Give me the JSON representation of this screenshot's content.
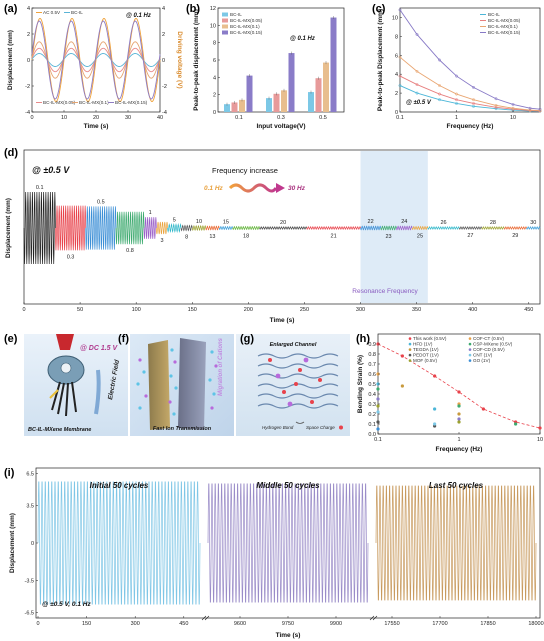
{
  "panels": {
    "a": {
      "label": "(a)",
      "freq_note": "@ 0.1 Hz",
      "ylabel": "Displacement (mm)",
      "ylabel2": "Driving voltage (V)",
      "xlabel": "Time (s)",
      "legend": [
        "AC 0.5V",
        "BC-IL",
        "BC-IL-MX(0.05)",
        "BC-IL-MX(0.1)",
        "BC-IL-MX(0.15)"
      ]
    },
    "b": {
      "label": "(b)",
      "freq_note": "@ 0.1 Hz",
      "xlabel": "Input voltage(V)",
      "ylabel": "Peak-to-peak displacement (mm)",
      "legend": [
        "BC-IL",
        "BC-IL-MX(0.05)",
        "BC-IL-MX(0.1)",
        "BC-IL-MX(0.15)"
      ]
    },
    "c": {
      "label": "(c)",
      "voltage_note": "@ ±0.5 V",
      "xlabel": "Frequency (Hz)",
      "ylabel": "Peak-to-peak Displacement (mm)",
      "legend": [
        "BC-IL",
        "BC-IL-MX(0.05)",
        "BC-IL-MX(0.1)",
        "BC-IL-MX(0.15)"
      ]
    },
    "d": {
      "label": "(d)",
      "voltage_note": "@ ±0.5 V",
      "title": "Frequency increase",
      "freq_start": "0.1 Hz",
      "freq_end": "30 Hz",
      "ylabel": "Displacement (mm)",
      "xlabel": "Time (s)",
      "resonance_label": "Resonance Frequency",
      "freq_labels": [
        "0.1",
        "0.3",
        "0.5",
        "0.8",
        "1",
        "3",
        "5",
        "8",
        "10",
        "13",
        "15",
        "18",
        "20",
        "21",
        "22",
        "23",
        "24",
        "25",
        "26",
        "27",
        "28",
        "29",
        "30"
      ]
    },
    "e": {
      "label": "(e)",
      "note": "@ DC 1.5 V",
      "caption": "BC-IL-MXene Membrane",
      "field": "Electric Field"
    },
    "f": {
      "label": "(f)",
      "caption": "Fast Ion Transmission",
      "migration": "Migration of Cations"
    },
    "g": {
      "label": "(g)",
      "title": "Enlarged Channel",
      "legend1": "Hydrogen Bond",
      "legend2": "Space Charge"
    },
    "h": {
      "label": "(h)",
      "xlabel": "Frequency (Hz)",
      "ylabel": "Bending Strain (%)",
      "legend": [
        "This work (0.5V)",
        "COF-CT (0.5V)",
        "HFD (1V)",
        "CSP-MXene (0.5V)",
        "TEGDA (1V)",
        "COF-CD (0.5V)",
        "PEDOT (1V)",
        "CNT (1V)",
        "MOF (0.5V)",
        "GO (1V)"
      ]
    },
    "i": {
      "label": "(i)",
      "segment_labels": [
        "Initial 50 cycles",
        "Middle 50 cycles",
        "Last 50 cycles"
      ],
      "note": "@ ±0.5 V, 0.1 Hz",
      "ylabel": "Displacement (mm)",
      "xlabel": "Time (s)"
    }
  },
  "chart_data": [
    {
      "type": "line",
      "panel": "a",
      "xlabel": "Time (s)",
      "ylabel": "Displacement (mm)",
      "xlim": [
        0,
        40
      ],
      "ylim": [
        -4,
        4
      ],
      "x_ticks": [
        0,
        10,
        20,
        30,
        40
      ],
      "y_ticks": [
        -4,
        -2,
        0,
        2,
        4
      ],
      "y2_ticks": [
        -4,
        -2,
        0,
        2,
        4
      ],
      "period_s": 10,
      "series": [
        {
          "name": "AC 0.5V",
          "amplitude": 3.2,
          "color": "#F0A23B"
        },
        {
          "name": "BC-IL",
          "amplitude": 0.5,
          "color": "#5AB4D6"
        },
        {
          "name": "BC-IL-MX(0.05)",
          "amplitude": 0.9,
          "color": "#E88A8A"
        },
        {
          "name": "BC-IL-MX(0.1)",
          "amplitude": 1.4,
          "color": "#E6A572"
        },
        {
          "name": "BC-IL-MX(0.15)",
          "amplitude": 3.0,
          "color": "#8E7CC3"
        }
      ]
    },
    {
      "type": "bar",
      "panel": "b",
      "categories": [
        "0.1",
        "0.3",
        "0.5"
      ],
      "xlabel": "Input voltage(V)",
      "ylabel": "Peak-to-peak displacement (mm)",
      "ylim": [
        0,
        12
      ],
      "y_ticks": [
        0,
        2,
        4,
        6,
        8,
        10,
        12
      ],
      "series": [
        {
          "name": "BC-IL",
          "values": [
            0.9,
            1.6,
            2.3
          ],
          "color": "#7CC8E6"
        },
        {
          "name": "BC-IL-MX(0.05)",
          "values": [
            1.1,
            2.1,
            3.9
          ],
          "color": "#E79A9A"
        },
        {
          "name": "BC-IL-MX(0.1)",
          "values": [
            1.4,
            2.5,
            5.7
          ],
          "color": "#E8BE8E"
        },
        {
          "name": "BC-IL-MX(0.15)",
          "values": [
            4.2,
            6.8,
            10.9
          ],
          "color": "#8A7CC8"
        }
      ]
    },
    {
      "type": "line",
      "panel": "c",
      "xlabel": "Frequency (Hz)",
      "ylabel": "Peak-to-peak Displacement (mm)",
      "xscale": "log",
      "xlim": [
        0.1,
        30
      ],
      "ylim": [
        0,
        11
      ],
      "x_ticks": [
        0.1,
        1,
        10
      ],
      "y_ticks": [
        0,
        2,
        4,
        6,
        8,
        10
      ],
      "x": [
        0.1,
        0.2,
        0.5,
        1,
        2,
        5,
        10,
        20,
        30
      ],
      "series": [
        {
          "name": "BC-IL",
          "values": [
            2.8,
            2.0,
            1.3,
            0.9,
            0.6,
            0.35,
            0.2,
            0.1,
            0.08
          ],
          "color": "#4BB6D8"
        },
        {
          "name": "BC-IL-MX(0.05)",
          "values": [
            3.8,
            2.9,
            1.9,
            1.3,
            0.9,
            0.5,
            0.3,
            0.15,
            0.1
          ],
          "color": "#E77F7F"
        },
        {
          "name": "BC-IL-MX(0.1)",
          "values": [
            5.8,
            4.3,
            2.8,
            1.9,
            1.3,
            0.7,
            0.4,
            0.2,
            0.15
          ],
          "color": "#E9A672"
        },
        {
          "name": "BC-IL-MX(0.15)",
          "values": [
            10.8,
            8.2,
            5.5,
            3.8,
            2.6,
            1.4,
            0.8,
            0.4,
            0.3
          ],
          "color": "#8779C6"
        }
      ]
    },
    {
      "type": "line",
      "panel": "d",
      "xlabel": "Time (s)",
      "ylabel": "Displacement (mm)",
      "xlim": [
        0,
        460
      ],
      "x_ticks": [
        0,
        50,
        100,
        150,
        200,
        250,
        300,
        350,
        400,
        450
      ],
      "resonance_range_s": [
        300,
        360
      ],
      "segments": [
        {
          "freq": "0.1",
          "t0": 0,
          "t1": 28,
          "amp": 1.0,
          "color": "#222222"
        },
        {
          "freq": "0.3",
          "t0": 28,
          "t1": 55,
          "amp": 0.62,
          "color": "#E8424B"
        },
        {
          "freq": "0.5",
          "t0": 55,
          "t1": 82,
          "amp": 0.6,
          "color": "#3C8FD6"
        },
        {
          "freq": "0.8",
          "t0": 82,
          "t1": 107,
          "amp": 0.45,
          "color": "#3DAA6F"
        },
        {
          "freq": "1",
          "t0": 107,
          "t1": 118,
          "amp": 0.3,
          "color": "#9A5FC8"
        },
        {
          "freq": "3",
          "t0": 118,
          "t1": 128,
          "amp": 0.17,
          "color": "#E9A33D"
        },
        {
          "freq": "5",
          "t0": 128,
          "t1": 140,
          "amp": 0.1,
          "color": "#2FB7C9"
        },
        {
          "freq": "8",
          "t0": 140,
          "t1": 150,
          "amp": 0.07,
          "color": "#555555"
        },
        {
          "freq": "10",
          "t0": 150,
          "t1": 162,
          "amp": 0.06,
          "color": "#9BA12E"
        },
        {
          "freq": "13",
          "t0": 162,
          "t1": 174,
          "amp": 0.05,
          "color": "#E8652E"
        },
        {
          "freq": "15",
          "t0": 174,
          "t1": 186,
          "amp": 0.04,
          "color": "#3B9DD8"
        },
        {
          "freq": "18",
          "t0": 186,
          "t1": 210,
          "amp": 0.04,
          "color": "#64B43C"
        },
        {
          "freq": "20",
          "t0": 210,
          "t1": 252,
          "amp": 0.03,
          "color": "#444444"
        },
        {
          "freq": "21",
          "t0": 252,
          "t1": 300,
          "amp": 0.035,
          "color": "#E8424B"
        },
        {
          "freq": "22",
          "t0": 300,
          "t1": 318,
          "amp": 0.05,
          "color": "#3C8FD6"
        },
        {
          "freq": "23",
          "t0": 318,
          "t1": 332,
          "amp": 0.05,
          "color": "#3DAA6F"
        },
        {
          "freq": "24",
          "t0": 332,
          "t1": 346,
          "amp": 0.05,
          "color": "#9A5FC8"
        },
        {
          "freq": "25",
          "t0": 346,
          "t1": 360,
          "amp": 0.04,
          "color": "#E9A33D"
        },
        {
          "freq": "26",
          "t0": 360,
          "t1": 388,
          "amp": 0.03,
          "color": "#2FB7C9"
        },
        {
          "freq": "27",
          "t0": 388,
          "t1": 408,
          "amp": 0.025,
          "color": "#555555"
        },
        {
          "freq": "28",
          "t0": 408,
          "t1": 428,
          "amp": 0.025,
          "color": "#9BA12E"
        },
        {
          "freq": "29",
          "t0": 428,
          "t1": 448,
          "amp": 0.02,
          "color": "#E8652E"
        },
        {
          "freq": "30",
          "t0": 448,
          "t1": 460,
          "amp": 0.02,
          "color": "#3B9DD8"
        }
      ]
    },
    {
      "type": "scatter",
      "panel": "h",
      "xlabel": "Frequency (Hz)",
      "ylabel": "Bending Strain (%)",
      "xscale": "log",
      "xlim": [
        0.1,
        10
      ],
      "ylim": [
        0,
        1.0
      ],
      "x_ticks": [
        0.1,
        1,
        10
      ],
      "y_ticks": [
        0.0,
        0.1,
        0.2,
        0.3,
        0.4,
        0.5,
        0.6,
        0.7,
        0.8,
        0.9
      ],
      "series": [
        {
          "name": "This work (0.5V)",
          "x": [
            0.1,
            0.2,
            0.5,
            1,
            2,
            5,
            10
          ],
          "y": [
            0.9,
            0.78,
            0.58,
            0.42,
            0.25,
            0.12,
            0.06
          ],
          "color": "#E8424B",
          "line": true
        },
        {
          "name": "COF-CT (0.5V)",
          "x": [
            0.1,
            1
          ],
          "y": [
            0.6,
            0.3
          ],
          "color": "#E8A24B"
        },
        {
          "name": "HFD (1V)",
          "x": [
            0.1,
            0.5
          ],
          "y": [
            0.5,
            0.25
          ],
          "color": "#4BB6D8"
        },
        {
          "name": "CSP-MXene (0.5V)",
          "x": [
            0.1,
            1,
            5
          ],
          "y": [
            0.45,
            0.28,
            0.1
          ],
          "color": "#3DAA6F"
        },
        {
          "name": "TEGDA (1V)",
          "x": [
            0.2,
            1
          ],
          "y": [
            0.48,
            0.2
          ],
          "color": "#C89A3D"
        },
        {
          "name": "COF-CD (0.5V)",
          "x": [
            0.1,
            1
          ],
          "y": [
            0.35,
            0.15
          ],
          "color": "#8A7CC8"
        },
        {
          "name": "PEDOT (1V)",
          "x": [
            0.1,
            0.5
          ],
          "y": [
            0.12,
            0.08
          ],
          "color": "#555555"
        },
        {
          "name": "CNT (1V)",
          "x": [
            0.1,
            0.5
          ],
          "y": [
            0.22,
            0.1
          ],
          "color": "#7CC8E6"
        },
        {
          "name": "MOF (0.5V)",
          "x": [
            0.1,
            1
          ],
          "y": [
            0.28,
            0.12
          ],
          "color": "#9BA12E"
        },
        {
          "name": "GO (1V)",
          "x": [
            0.1
          ],
          "y": [
            0.05
          ],
          "color": "#3C8FD6"
        }
      ]
    },
    {
      "type": "line",
      "panel": "i",
      "xlabel": "Time (s)",
      "ylabel": "Displacement (mm)",
      "ylim": [
        -7,
        7
      ],
      "y_ticks": [
        -6.5,
        -3.5,
        0,
        3.5,
        6.5
      ],
      "segments": [
        {
          "label": "Initial 50 cycles",
          "t_range": [
            0,
            500
          ],
          "ticks": [
            0,
            150,
            300,
            450
          ],
          "amp": 6.0,
          "cycles": 50,
          "color": "#7FC6E6"
        },
        {
          "label": "Middle 50 cycles",
          "t_range": [
            9500,
            10000
          ],
          "ticks": [
            9600,
            9750,
            9900
          ],
          "amp": 5.8,
          "cycles": 50,
          "color": "#9A8CC8"
        },
        {
          "label": "Last 50 cycles",
          "t_range": [
            17500,
            18000
          ],
          "ticks": [
            17550,
            17700,
            17850,
            18000
          ],
          "amp": 5.6,
          "cycles": 50,
          "color": "#C89A5E"
        }
      ]
    }
  ]
}
